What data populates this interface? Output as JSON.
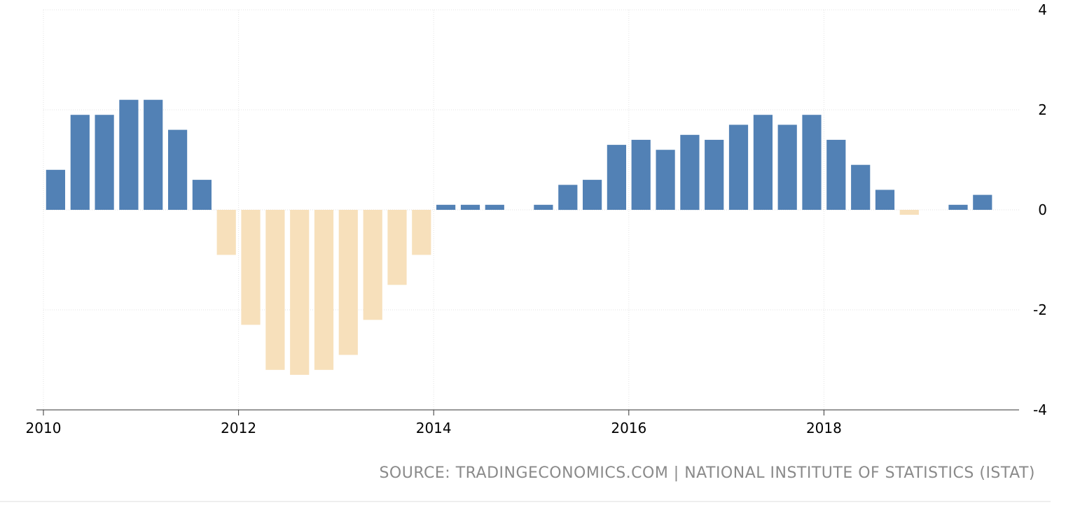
{
  "chart_data": {
    "type": "bar",
    "title": "",
    "xlabel": "",
    "ylabel": "",
    "x_ticks": [
      "2010",
      "2012",
      "2014",
      "2016",
      "2018"
    ],
    "y_ticks": [
      "4",
      "2",
      "0",
      "-2",
      "-4"
    ],
    "ylim": [
      -4,
      4
    ],
    "xlim": [
      "2010-01",
      "2019-12"
    ],
    "grid": true,
    "y_axis_position": "right",
    "colors": {
      "positive": "#5281b5",
      "negative": "#f7e0bb"
    },
    "series": [
      {
        "dates": [
          "2010-Q1",
          "2010-Q2",
          "2010-Q3",
          "2010-Q4",
          "2011-Q1",
          "2011-Q2",
          "2011-Q3",
          "2011-Q4",
          "2012-Q1",
          "2012-Q2",
          "2012-Q3",
          "2012-Q4",
          "2013-Q1",
          "2013-Q2",
          "2013-Q3",
          "2013-Q4",
          "2014-Q1",
          "2014-Q2",
          "2014-Q3",
          "2014-Q4",
          "2015-Q1",
          "2015-Q2",
          "2015-Q3",
          "2015-Q4",
          "2016-Q1",
          "2016-Q2",
          "2016-Q3",
          "2016-Q4",
          "2017-Q1",
          "2017-Q2",
          "2017-Q3",
          "2017-Q4",
          "2018-Q1",
          "2018-Q2",
          "2018-Q3",
          "2018-Q4",
          "2019-Q1",
          "2019-Q2",
          "2019-Q3"
        ],
        "values": [
          0.8,
          1.9,
          1.9,
          2.2,
          2.2,
          1.6,
          0.6,
          -0.9,
          -2.3,
          -3.2,
          -3.3,
          -3.2,
          -2.9,
          -2.2,
          -1.5,
          -0.9,
          0.1,
          0.1,
          0.1,
          0.0,
          0.1,
          0.5,
          0.6,
          1.3,
          1.4,
          1.2,
          1.5,
          1.4,
          1.7,
          1.9,
          1.7,
          1.9,
          1.4,
          0.9,
          0.4,
          -0.1,
          0.0,
          0.1,
          0.3
        ]
      }
    ]
  },
  "source": "SOURCE: TRADINGECONOMICS.COM | NATIONAL INSTITUTE OF STATISTICS (ISTAT)"
}
